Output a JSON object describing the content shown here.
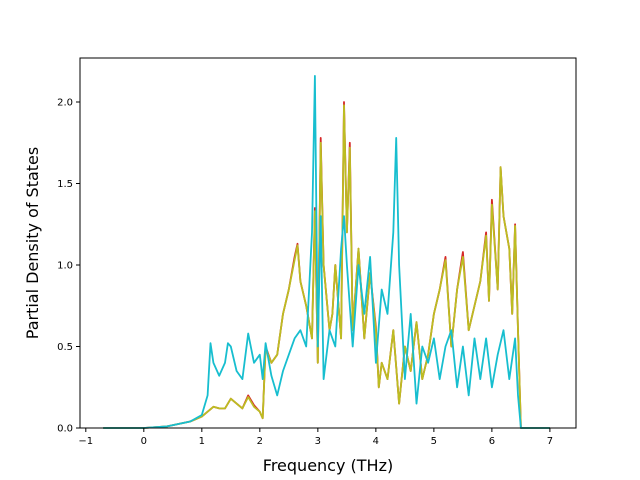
{
  "chart_data": {
    "type": "line",
    "title": "",
    "xlabel": "Frequency (THz)",
    "ylabel": "Partial Density of States",
    "xlim": [
      -1.1,
      7.45
    ],
    "ylim": [
      0,
      2.27
    ],
    "xticks": [
      -1,
      0,
      1,
      2,
      3,
      4,
      5,
      6,
      7
    ],
    "xtick_labels": [
      "−1",
      "0",
      "1",
      "2",
      "3",
      "4",
      "5",
      "6",
      "7"
    ],
    "yticks": [
      0.0,
      0.5,
      1.0,
      1.5,
      2.0
    ],
    "ytick_labels": [
      "0.0",
      "0.5",
      "1.0",
      "1.5",
      "2.0"
    ],
    "grid": false,
    "legend": "none",
    "series": [
      {
        "color": "#d62728",
        "x": [
          -0.7,
          0.0,
          0.4,
          0.8,
          1.0,
          1.1,
          1.2,
          1.3,
          1.4,
          1.5,
          1.6,
          1.7,
          1.8,
          1.9,
          2.0,
          2.05,
          2.1,
          2.2,
          2.3,
          2.4,
          2.5,
          2.6,
          2.65,
          2.7,
          2.8,
          2.9,
          2.95,
          3.0,
          3.05,
          3.1,
          3.2,
          3.25,
          3.3,
          3.4,
          3.45,
          3.5,
          3.55,
          3.6,
          3.7,
          3.8,
          3.9,
          4.0,
          4.05,
          4.1,
          4.2,
          4.3,
          4.4,
          4.5,
          4.6,
          4.7,
          4.8,
          4.9,
          5.0,
          5.1,
          5.2,
          5.3,
          5.4,
          5.5,
          5.6,
          5.7,
          5.8,
          5.9,
          5.95,
          6.0,
          6.1,
          6.15,
          6.2,
          6.3,
          6.35,
          6.4,
          6.45,
          6.5,
          7.0
        ],
        "y": [
          0.0,
          0.0,
          0.01,
          0.04,
          0.07,
          0.1,
          0.13,
          0.12,
          0.12,
          0.18,
          0.15,
          0.12,
          0.2,
          0.14,
          0.1,
          0.06,
          0.5,
          0.4,
          0.45,
          0.7,
          0.85,
          1.05,
          1.13,
          0.9,
          0.75,
          0.55,
          1.35,
          0.4,
          1.78,
          1.0,
          0.6,
          0.7,
          1.0,
          0.55,
          2.0,
          1.2,
          1.75,
          0.6,
          1.1,
          0.55,
          0.95,
          0.62,
          0.25,
          0.4,
          0.3,
          0.6,
          0.15,
          0.5,
          0.35,
          0.65,
          0.3,
          0.45,
          0.7,
          0.85,
          1.05,
          0.5,
          0.85,
          1.08,
          0.6,
          0.75,
          0.9,
          1.2,
          0.78,
          1.4,
          0.85,
          1.6,
          1.3,
          1.1,
          0.7,
          1.25,
          0.6,
          0.0,
          0.0
        ]
      },
      {
        "color": "#bcbd22",
        "x": [
          -0.7,
          0.0,
          0.4,
          0.8,
          1.0,
          1.1,
          1.2,
          1.3,
          1.4,
          1.5,
          1.6,
          1.7,
          1.8,
          1.9,
          2.0,
          2.05,
          2.1,
          2.2,
          2.3,
          2.4,
          2.5,
          2.6,
          2.65,
          2.7,
          2.8,
          2.9,
          2.95,
          3.0,
          3.05,
          3.1,
          3.2,
          3.25,
          3.3,
          3.4,
          3.45,
          3.5,
          3.55,
          3.6,
          3.7,
          3.8,
          3.9,
          4.0,
          4.05,
          4.1,
          4.2,
          4.3,
          4.4,
          4.5,
          4.6,
          4.7,
          4.8,
          4.9,
          5.0,
          5.1,
          5.2,
          5.3,
          5.4,
          5.5,
          5.6,
          5.7,
          5.8,
          5.9,
          5.95,
          6.0,
          6.1,
          6.15,
          6.2,
          6.3,
          6.35,
          6.4,
          6.45,
          6.5,
          7.0
        ],
        "y": [
          0.0,
          0.0,
          0.01,
          0.04,
          0.07,
          0.1,
          0.13,
          0.12,
          0.12,
          0.18,
          0.15,
          0.12,
          0.19,
          0.13,
          0.1,
          0.06,
          0.49,
          0.4,
          0.45,
          0.7,
          0.85,
          1.03,
          1.12,
          0.9,
          0.75,
          0.55,
          1.33,
          0.4,
          1.75,
          1.0,
          0.6,
          0.7,
          1.0,
          0.55,
          1.98,
          1.2,
          1.72,
          0.6,
          1.1,
          0.55,
          0.95,
          0.6,
          0.25,
          0.4,
          0.3,
          0.6,
          0.15,
          0.5,
          0.35,
          0.65,
          0.3,
          0.45,
          0.7,
          0.85,
          1.03,
          0.5,
          0.85,
          1.05,
          0.6,
          0.75,
          0.9,
          1.18,
          0.78,
          1.37,
          0.85,
          1.6,
          1.3,
          1.1,
          0.7,
          1.24,
          0.6,
          0.0,
          0.0
        ]
      },
      {
        "color": "#17becf",
        "x": [
          -0.7,
          0.0,
          0.4,
          0.8,
          1.0,
          1.1,
          1.15,
          1.2,
          1.3,
          1.4,
          1.45,
          1.5,
          1.6,
          1.7,
          1.8,
          1.9,
          2.0,
          2.05,
          2.1,
          2.2,
          2.3,
          2.4,
          2.5,
          2.6,
          2.7,
          2.8,
          2.9,
          2.95,
          3.0,
          3.05,
          3.1,
          3.2,
          3.3,
          3.4,
          3.45,
          3.5,
          3.6,
          3.7,
          3.8,
          3.9,
          4.0,
          4.1,
          4.2,
          4.3,
          4.35,
          4.4,
          4.5,
          4.6,
          4.7,
          4.8,
          4.9,
          5.0,
          5.1,
          5.2,
          5.3,
          5.4,
          5.5,
          5.6,
          5.7,
          5.8,
          5.9,
          6.0,
          6.1,
          6.2,
          6.3,
          6.4,
          6.45,
          6.5,
          7.0
        ],
        "y": [
          0.0,
          0.0,
          0.01,
          0.04,
          0.08,
          0.2,
          0.52,
          0.4,
          0.32,
          0.4,
          0.52,
          0.5,
          0.35,
          0.3,
          0.58,
          0.4,
          0.45,
          0.3,
          0.52,
          0.32,
          0.2,
          0.35,
          0.45,
          0.55,
          0.6,
          0.5,
          1.2,
          2.16,
          0.5,
          1.3,
          0.3,
          0.6,
          0.5,
          1.1,
          1.3,
          1.0,
          0.5,
          1.0,
          0.7,
          1.05,
          0.4,
          0.85,
          0.7,
          1.2,
          1.78,
          1.0,
          0.3,
          0.7,
          0.15,
          0.5,
          0.4,
          0.55,
          0.3,
          0.5,
          0.6,
          0.25,
          0.5,
          0.2,
          0.55,
          0.3,
          0.55,
          0.25,
          0.45,
          0.6,
          0.3,
          0.55,
          0.2,
          0.0,
          0.0
        ]
      }
    ]
  }
}
